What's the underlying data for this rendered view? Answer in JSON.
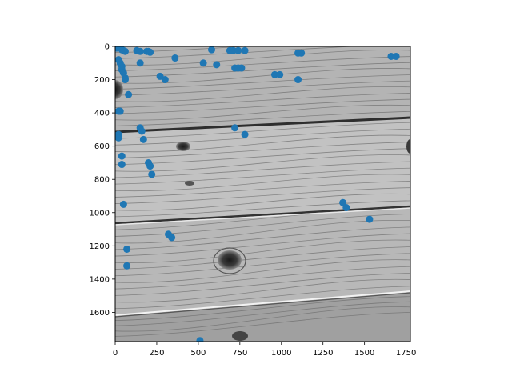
{
  "figure": {
    "background": "#ffffff"
  },
  "chart_data": {
    "type": "scatter",
    "title": "",
    "xlabel": "",
    "ylabel": "",
    "background_image": "grayscale-wood-planks",
    "xlim": [
      0,
      1776
    ],
    "ylim": [
      1776,
      0
    ],
    "y_inverted": true,
    "grid": false,
    "x_ticks": [
      0,
      250,
      500,
      750,
      1000,
      1250,
      1500,
      1750
    ],
    "y_ticks": [
      0,
      200,
      400,
      600,
      800,
      1000,
      1200,
      1400,
      1600
    ],
    "marker_color": "#1f77b4",
    "series": [
      {
        "points": [
          [
            10,
            10
          ],
          [
            40,
            20
          ],
          [
            50,
            25
          ],
          [
            60,
            30
          ],
          [
            130,
            25
          ],
          [
            150,
            30
          ],
          [
            190,
            30
          ],
          [
            200,
            30
          ],
          [
            210,
            35
          ],
          [
            580,
            20
          ],
          [
            690,
            25
          ],
          [
            710,
            25
          ],
          [
            740,
            25
          ],
          [
            780,
            25
          ],
          [
            20,
            80
          ],
          [
            30,
            100
          ],
          [
            40,
            120
          ],
          [
            40,
            140
          ],
          [
            50,
            160
          ],
          [
            60,
            190
          ],
          [
            60,
            200
          ],
          [
            150,
            100
          ],
          [
            360,
            70
          ],
          [
            270,
            180
          ],
          [
            300,
            200
          ],
          [
            530,
            100
          ],
          [
            610,
            110
          ],
          [
            720,
            130
          ],
          [
            740,
            130
          ],
          [
            760,
            130
          ],
          [
            960,
            170
          ],
          [
            990,
            170
          ],
          [
            1100,
            200
          ],
          [
            1100,
            40
          ],
          [
            1120,
            40
          ],
          [
            1660,
            60
          ],
          [
            1690,
            60
          ],
          [
            80,
            290
          ],
          [
            20,
            390
          ],
          [
            30,
            390
          ],
          [
            20,
            530
          ],
          [
            20,
            550
          ],
          [
            150,
            490
          ],
          [
            160,
            510
          ],
          [
            170,
            560
          ],
          [
            720,
            490
          ],
          [
            780,
            530
          ],
          [
            40,
            660
          ],
          [
            40,
            710
          ],
          [
            200,
            700
          ],
          [
            210,
            720
          ],
          [
            220,
            770
          ],
          [
            50,
            950
          ],
          [
            1370,
            940
          ],
          [
            1390,
            970
          ],
          [
            1530,
            1040
          ],
          [
            320,
            1130
          ],
          [
            340,
            1150
          ],
          [
            70,
            1220
          ],
          [
            70,
            1320
          ],
          [
            510,
            1770
          ]
        ]
      }
    ]
  }
}
